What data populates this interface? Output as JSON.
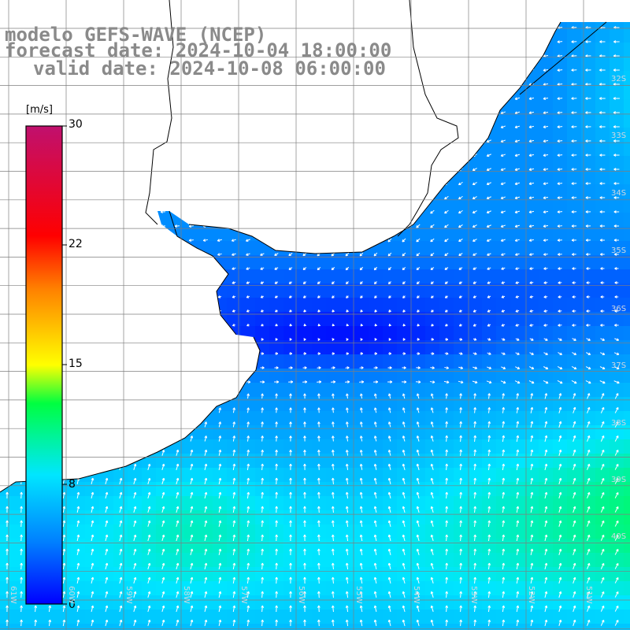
{
  "title": {
    "line1": "modelo GEFS-WAVE (NCEP)",
    "line2": "forecast date: 2024-10-04 18:00:00",
    "line3": "valid date: 2024-10-08 06:00:00"
  },
  "colorbar": {
    "unit": "[m/s]",
    "ticks": [
      "30",
      "22",
      "15",
      "8",
      "0"
    ],
    "colors": [
      "#0000ff",
      "#0080ff",
      "#00e6ff",
      "#00ff40",
      "#ffff00",
      "#ff8000",
      "#ff0000",
      "#c0106e"
    ]
  },
  "map_labels": {
    "latitudes": [
      "32S",
      "33S",
      "34S",
      "35S",
      "36S",
      "37S",
      "38S",
      "39S",
      "40S"
    ],
    "longitudes": [
      "61W",
      "60W",
      "59W",
      "58W",
      "57W",
      "56W",
      "55W",
      "54W",
      "53W",
      "52W",
      "51W"
    ]
  },
  "colors": {
    "land": "#ffffff",
    "coast": "#000000",
    "grid": "#7f7f7f",
    "arrow": "#ffffff",
    "title": "#8a8a8a"
  }
}
